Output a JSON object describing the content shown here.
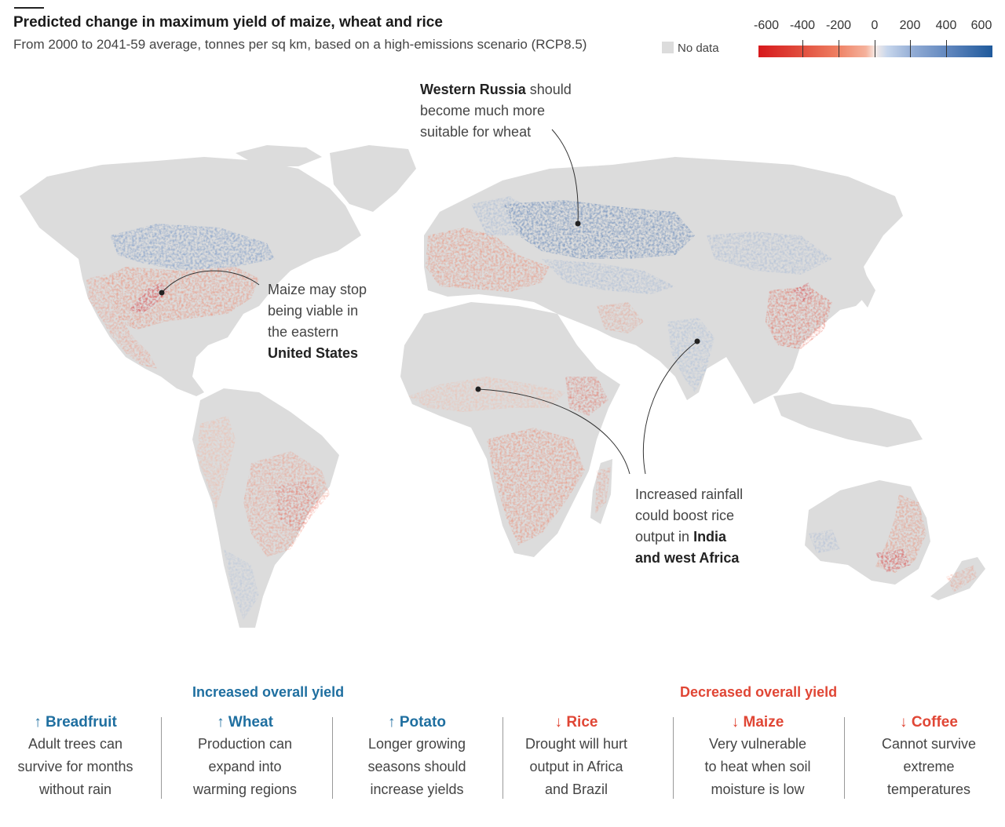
{
  "header": {
    "title": "Predicted change in maximum yield of maize, wheat and rice",
    "subtitle": "From 2000 to 2041-59 average, tonnes per sq km, based on a high-emissions scenario (RCP8.5)"
  },
  "legend": {
    "no_data_label": "No data",
    "no_data_color": "#dcdcdc",
    "ticks": [
      "-600",
      "-400",
      "-200",
      "0",
      "200",
      "400",
      "600"
    ],
    "low_color": "#d7191c",
    "mid_color": "#f6ece8",
    "high_color": "#1f5a9c"
  },
  "annotations": {
    "russia": {
      "bold": "Western Russia",
      "rest1": " should",
      "line2": "become much more",
      "line3": "suitable for wheat"
    },
    "us": {
      "line1": "Maize may stop",
      "line2": "being viable in",
      "line3": "the eastern",
      "bold": "United States"
    },
    "india": {
      "line1": "Increased rainfall",
      "line2": "could boost rice",
      "line3_pre": "output in ",
      "bold1": "India",
      "bold2": "and west Africa"
    }
  },
  "sections": {
    "increased": "Increased overall yield",
    "decreased": "Decreased overall yield"
  },
  "crops": [
    {
      "arrow": "↑",
      "name": "Breadfruit",
      "l1": "Adult trees can",
      "l2": "survive for months",
      "l3": "without rain"
    },
    {
      "arrow": "↑",
      "name": "Wheat",
      "l1": "Production can",
      "l2": "expand into",
      "l3": "warming regions"
    },
    {
      "arrow": "↑",
      "name": "Potato",
      "l1": "Longer growing",
      "l2": "seasons should",
      "l3": "increase yields"
    },
    {
      "arrow": "↓",
      "name": "Rice",
      "l1": "Drought will hurt",
      "l2": "output in Africa",
      "l3": "and Brazil"
    },
    {
      "arrow": "↓",
      "name": "Maize",
      "l1": "Very vulnerable",
      "l2": "to heat when soil",
      "l3": "moisture is low"
    },
    {
      "arrow": "↓",
      "name": "Coffee",
      "l1": "Cannot survive",
      "l2": "extreme",
      "l3": "temperatures"
    }
  ]
}
